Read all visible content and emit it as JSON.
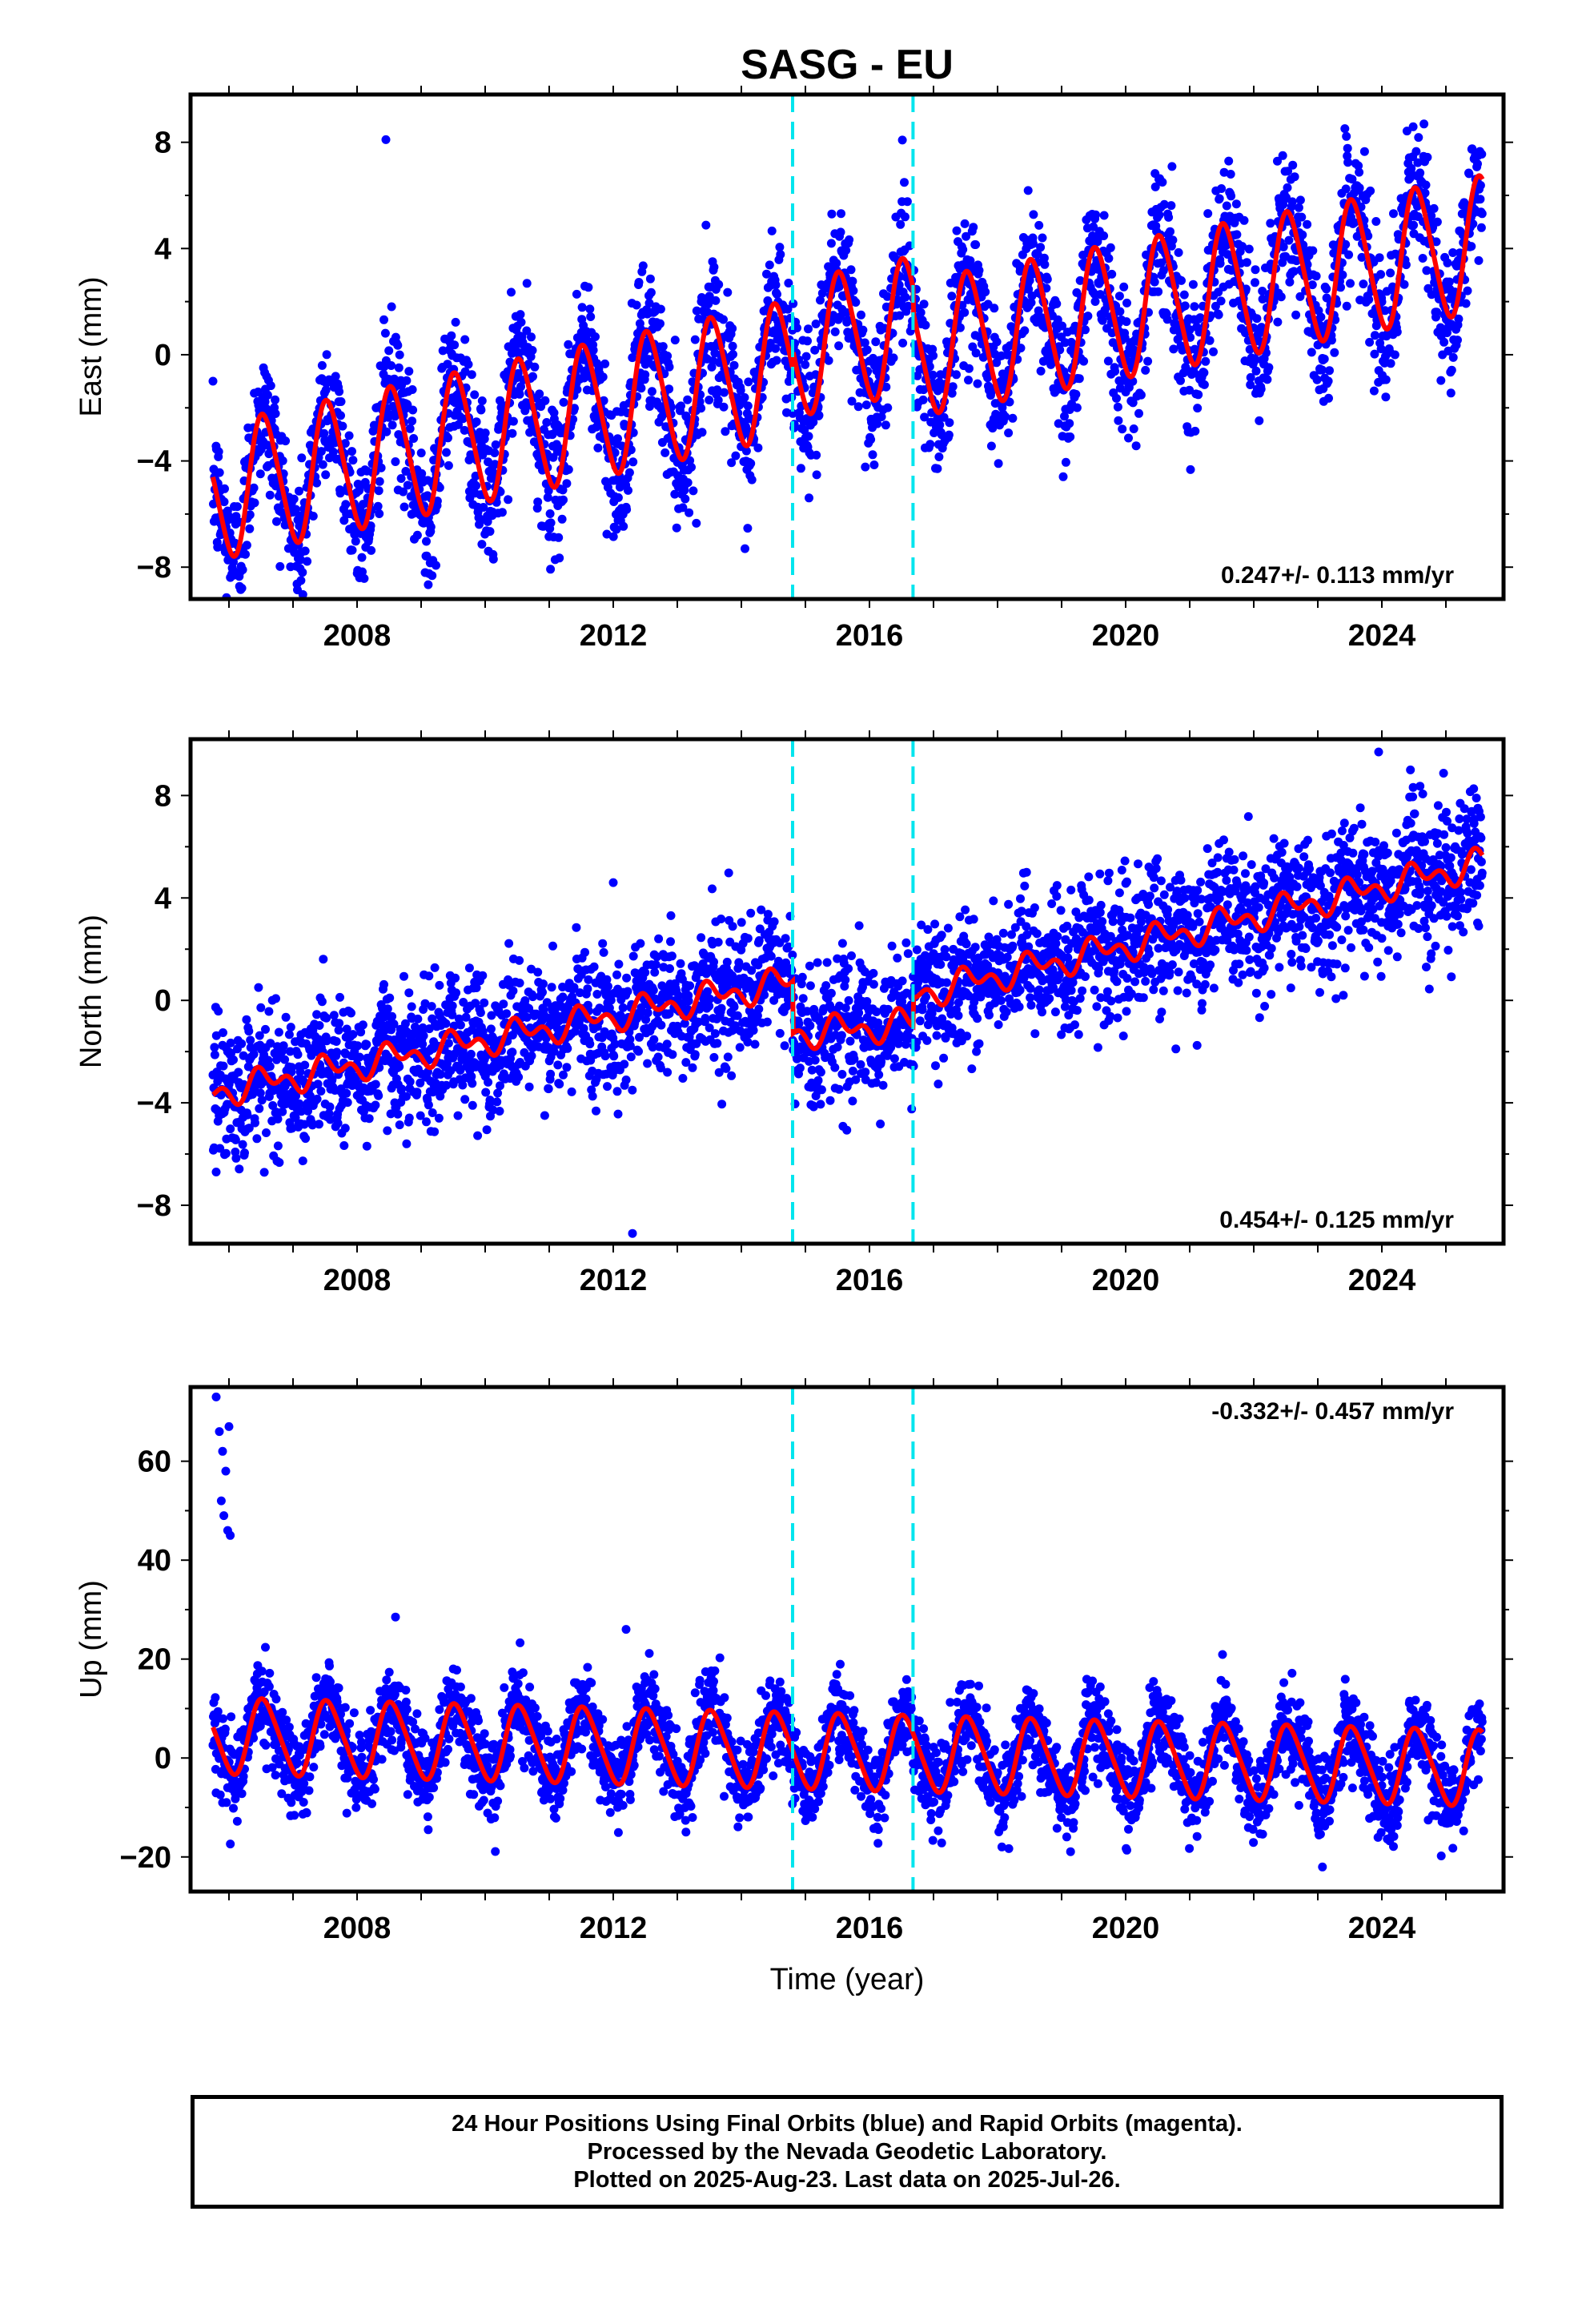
{
  "title": "SASG - EU",
  "colors": {
    "data": "#0000ff",
    "model": "#ff0000",
    "offset": "#00e5ee"
  },
  "footer": {
    "line1": "24 Hour Positions Using Final Orbits (blue) and Rapid Orbits (magenta).",
    "line2": "Processed by the Nevada Geodetic Laboratory.",
    "line3": "Plotted on 2025-Aug-23. Last data on 2025-Jul-26."
  },
  "chart_data": [
    {
      "type": "scatter",
      "ylabel": "East (mm)",
      "xlabel": "",
      "xlim": [
        2005.4,
        2025.9
      ],
      "ylim": [
        -9.2,
        9.8
      ],
      "xticks": [
        2008,
        2012,
        2016,
        2020,
        2024
      ],
      "xtick_labels": [
        "2008",
        "2012",
        "2016",
        "2020",
        "2024"
      ],
      "yticks": [
        -8,
        -4,
        0,
        4,
        8
      ],
      "ytick_labels": [
        "−8",
        "−4",
        "0",
        "4",
        "8"
      ],
      "rate_label": "0.247+/- 0.113 mm/yr",
      "rate_position": "bottom-right",
      "offset_lines": [
        2014.8,
        2016.68
      ],
      "data_range": [
        2005.75,
        2025.57
      ],
      "model": {
        "segments": [
          [
            2005.75,
            2014.8,
            -5.2,
            0.52
          ],
          [
            2014.8,
            2016.68,
            0.2,
            0.5
          ],
          [
            2016.68,
            2025.57,
            0.2,
            0.45
          ]
        ],
        "annual_amplitude": 2.5,
        "semiannual_amplitude": 0.3
      },
      "scatter_sd": 1.3,
      "outliers": [
        [
          2008.45,
          8.1
        ]
      ],
      "series": [
        {
          "name": "Final Orbits",
          "color": "#0000ff"
        }
      ]
    },
    {
      "type": "scatter",
      "ylabel": "North (mm)",
      "xlabel": "",
      "xlim": [
        2005.4,
        2025.9
      ],
      "ylim": [
        -9.5,
        10.2
      ],
      "xticks": [
        2008,
        2012,
        2016,
        2020,
        2024
      ],
      "xtick_labels": [
        "2008",
        "2012",
        "2016",
        "2020",
        "2024"
      ],
      "yticks": [
        -8,
        -4,
        0,
        4,
        8
      ],
      "ytick_labels": [
        "−8",
        "−4",
        "0",
        "4",
        "8"
      ],
      "rate_label": "0.454+/- 0.125 mm/yr",
      "rate_position": "bottom-right",
      "offset_lines": [
        2014.8,
        2016.68
      ],
      "data_range": [
        2005.75,
        2025.57
      ],
      "model": {
        "segments": [
          [
            2005.75,
            2014.8,
            -3.6,
            0.48
          ],
          [
            2014.8,
            2016.68,
            -1.3,
            0.2
          ],
          [
            2016.68,
            2025.57,
            0.2,
            0.58
          ]
        ],
        "annual_amplitude": 0.4,
        "semiannual_amplitude": 0.35
      },
      "scatter_sd": 1.3,
      "outliers": [
        [
          2012.0,
          4.6
        ],
        [
          2012.3,
          -9.1
        ],
        [
          2023.95,
          9.7
        ],
        [
          2005.8,
          -6.7
        ]
      ],
      "series": [
        {
          "name": "Final Orbits",
          "color": "#0000ff"
        }
      ]
    },
    {
      "type": "scatter",
      "ylabel": "Up (mm)",
      "xlabel": "Time (year)",
      "xlim": [
        2005.4,
        2025.9
      ],
      "ylim": [
        -27,
        75
      ],
      "xticks": [
        2008,
        2012,
        2016,
        2020,
        2024
      ],
      "xtick_labels": [
        "2008",
        "2012",
        "2016",
        "2020",
        "2024"
      ],
      "yticks": [
        -20,
        0,
        20,
        40,
        60
      ],
      "ytick_labels": [
        "−20",
        "0",
        "20",
        "40",
        "60"
      ],
      "rate_label": "-0.332+/- 0.457 mm/yr",
      "rate_position": "top-right",
      "offset_lines": [
        2014.8,
        2016.68
      ],
      "data_range": [
        2005.75,
        2025.57
      ],
      "model": {
        "segments": [
          [
            2005.75,
            2025.57,
            4.5,
            -0.33
          ]
        ],
        "annual_amplitude": 7.5,
        "semiannual_amplitude": 1.0
      },
      "scatter_sd": 4.2,
      "outliers": [
        [
          2005.8,
          73
        ],
        [
          2005.85,
          66
        ],
        [
          2005.9,
          62
        ],
        [
          2005.95,
          58
        ],
        [
          2006.0,
          67
        ],
        [
          2005.88,
          52
        ],
        [
          2005.92,
          49
        ],
        [
          2005.98,
          46
        ],
        [
          2006.02,
          45
        ],
        [
          2008.6,
          28.5
        ],
        [
          2012.2,
          26
        ]
      ],
      "series": [
        {
          "name": "Final Orbits",
          "color": "#0000ff"
        }
      ]
    }
  ]
}
